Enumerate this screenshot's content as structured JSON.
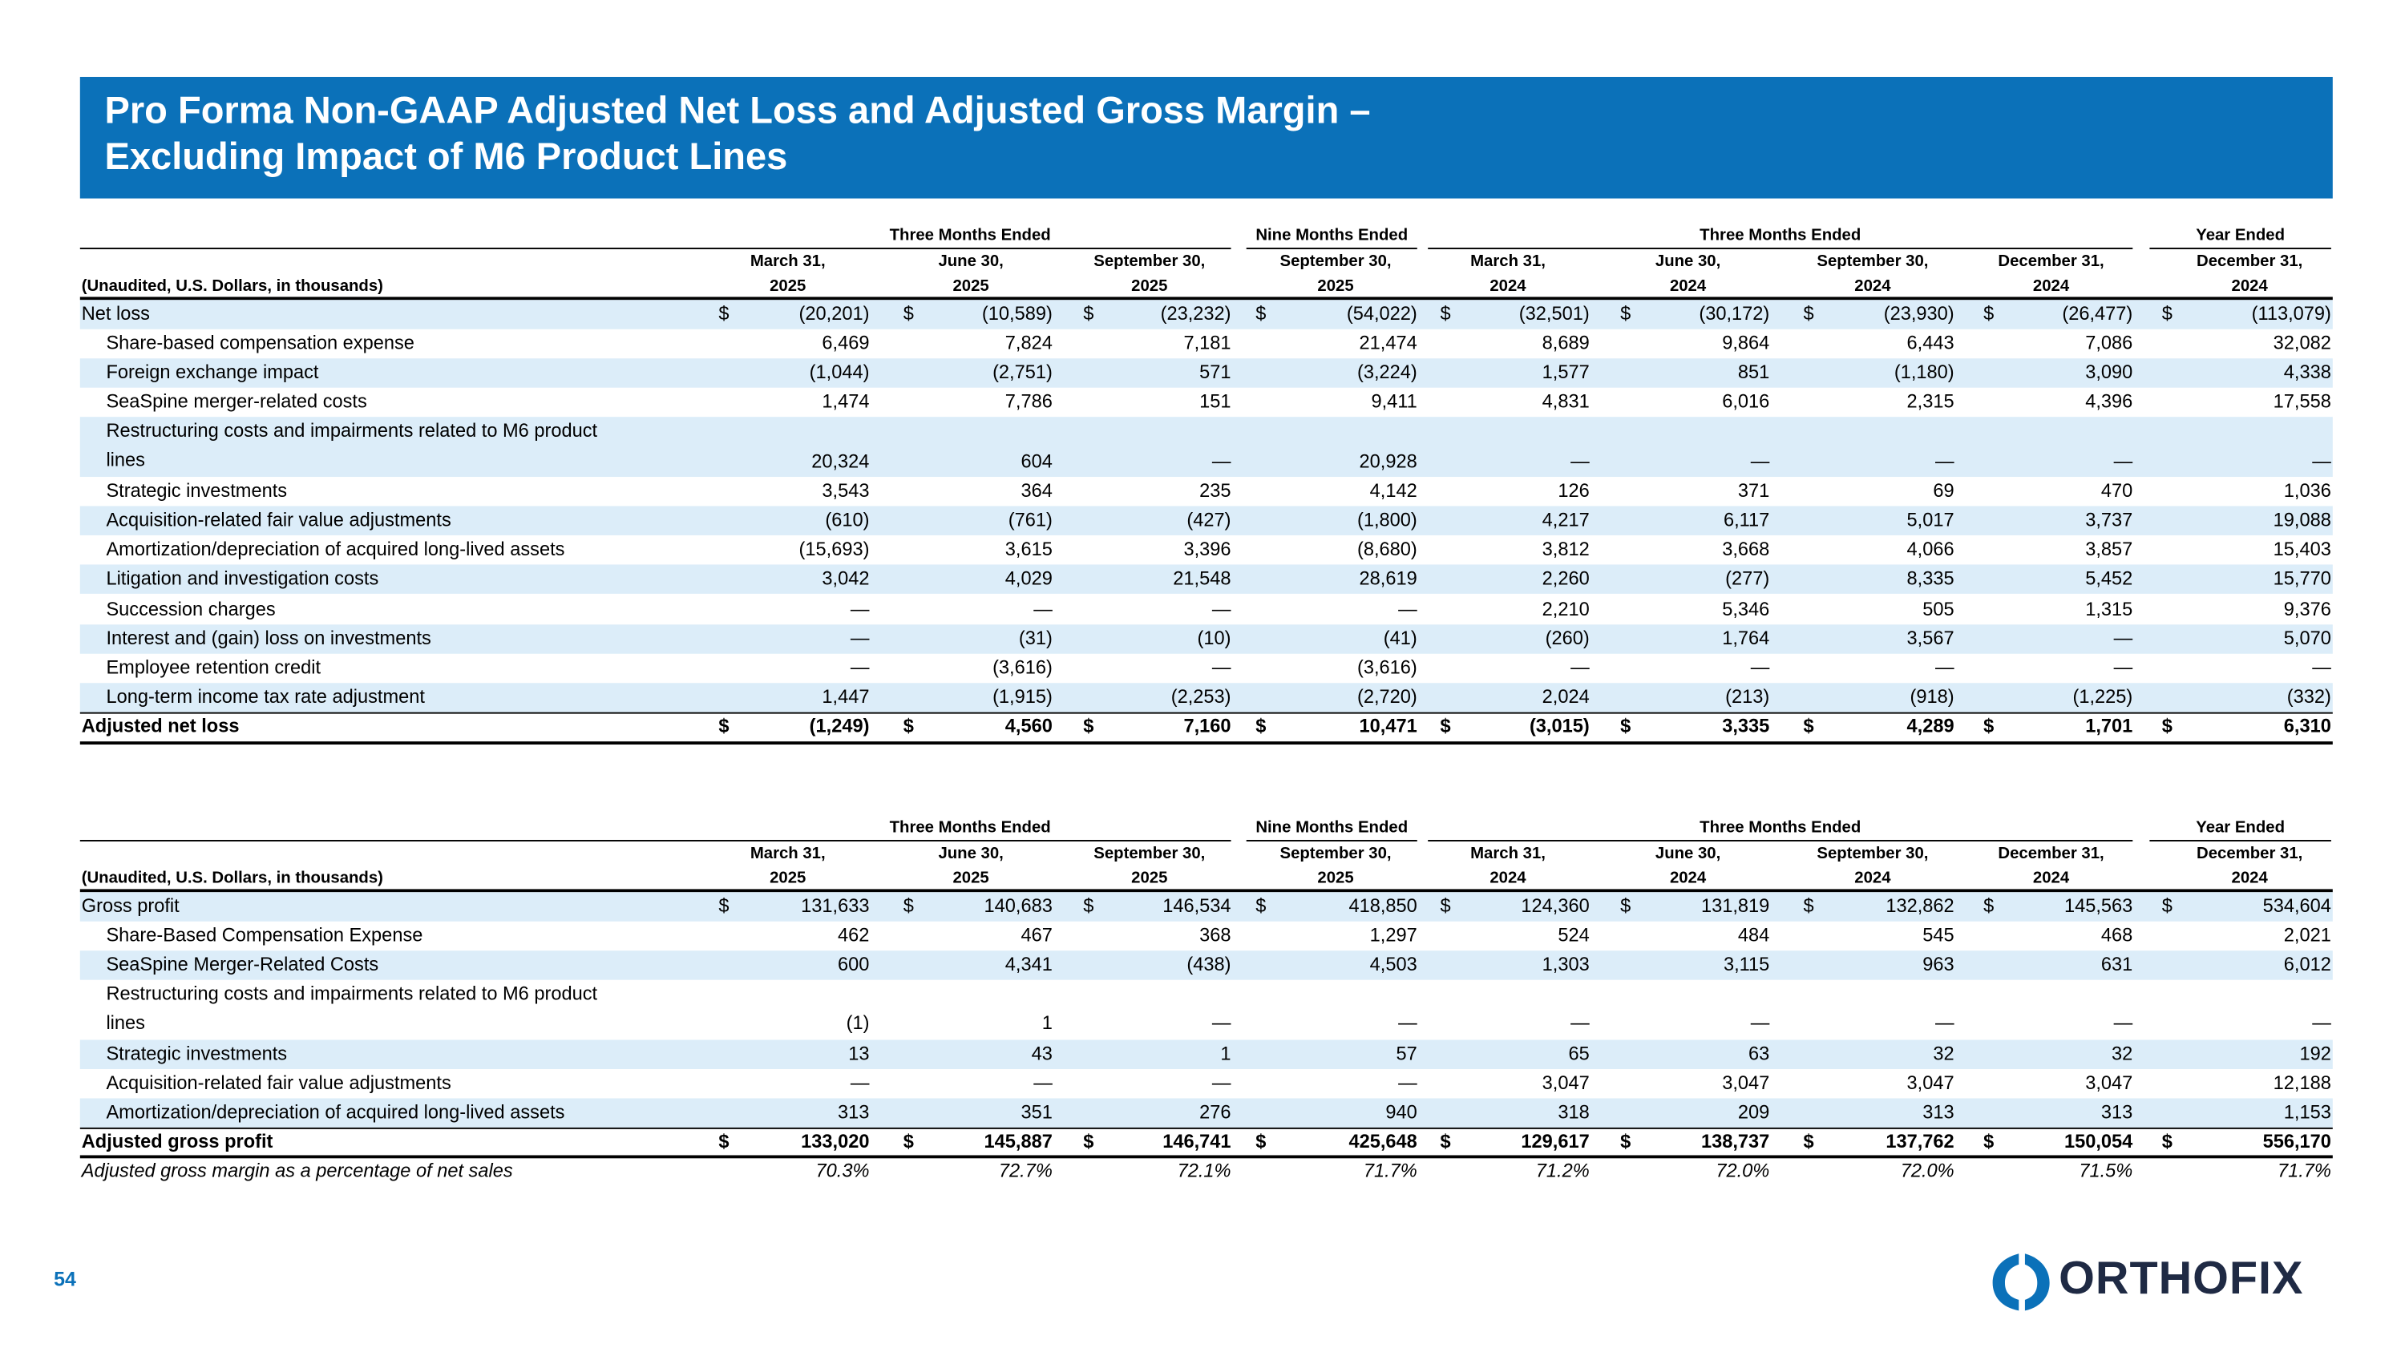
{
  "header": {
    "title_lines": [
      "Pro Forma Non-GAAP Adjusted Net Loss and Adjusted Gross Margin –",
      "Excluding Impact of M6 Product Lines"
    ]
  },
  "currency_symbol": "$",
  "tables": [
    {
      "note": "(Unaudited, U.S. Dollars, in thousands)",
      "groups": [
        "Three Months Ended",
        "Nine Months Ended",
        "Three Months Ended",
        "Year Ended"
      ],
      "columns": [
        [
          "March 31,",
          "2025"
        ],
        [
          "June 30,",
          "2025"
        ],
        [
          "September 30,",
          "2025"
        ],
        [
          "September 30,",
          "2025"
        ],
        [
          "March 31,",
          "2024"
        ],
        [
          "June 30,",
          "2024"
        ],
        [
          "September 30,",
          "2024"
        ],
        [
          "December 31,",
          "2024"
        ],
        [
          "December 31,",
          "2024"
        ]
      ],
      "rows": [
        {
          "label": "Net loss",
          "values": [
            "(20,201)",
            "(10,589)",
            "(23,232)",
            "(54,022)",
            "(32,501)",
            "(30,172)",
            "(23,930)",
            "(26,477)",
            "(113,079)"
          ]
        },
        {
          "label": "Share-based compensation expense",
          "values": [
            "6,469",
            "7,824",
            "7,181",
            "21,474",
            "8,689",
            "9,864",
            "6,443",
            "7,086",
            "32,082"
          ]
        },
        {
          "label": "Foreign exchange impact",
          "values": [
            "(1,044)",
            "(2,751)",
            "571",
            "(3,224)",
            "1,577",
            "851",
            "(1,180)",
            "3,090",
            "4,338"
          ]
        },
        {
          "label": "SeaSpine merger-related costs",
          "values": [
            "1,474",
            "7,786",
            "151",
            "9,411",
            "4,831",
            "6,016",
            "2,315",
            "4,396",
            "17,558"
          ]
        },
        {
          "label": "Restructuring costs and impairments related to M6 product lines",
          "values": [
            "20,324",
            "604",
            "—",
            "20,928",
            "—",
            "—",
            "—",
            "—",
            "—"
          ]
        },
        {
          "label": "Strategic investments",
          "values": [
            "3,543",
            "364",
            "235",
            "4,142",
            "126",
            "371",
            "69",
            "470",
            "1,036"
          ]
        },
        {
          "label": "Acquisition-related fair value adjustments",
          "values": [
            "(610)",
            "(761)",
            "(427)",
            "(1,800)",
            "4,217",
            "6,117",
            "5,017",
            "3,737",
            "19,088"
          ]
        },
        {
          "label": "Amortization/depreciation of acquired long-lived assets",
          "values": [
            "(15,693)",
            "3,615",
            "3,396",
            "(8,680)",
            "3,812",
            "3,668",
            "4,066",
            "3,857",
            "15,403"
          ]
        },
        {
          "label": "Litigation and investigation costs",
          "values": [
            "3,042",
            "4,029",
            "21,548",
            "28,619",
            "2,260",
            "(277)",
            "8,335",
            "5,452",
            "15,770"
          ]
        },
        {
          "label": "Succession charges",
          "values": [
            "—",
            "—",
            "—",
            "—",
            "2,210",
            "5,346",
            "505",
            "1,315",
            "9,376"
          ]
        },
        {
          "label": "Interest and (gain) loss on investments",
          "values": [
            "—",
            "(31)",
            "(10)",
            "(41)",
            "(260)",
            "1,764",
            "3,567",
            "—",
            "5,070"
          ]
        },
        {
          "label": "Employee retention credit",
          "values": [
            "—",
            "(3,616)",
            "—",
            "(3,616)",
            "—",
            "—",
            "—",
            "—",
            "—"
          ]
        },
        {
          "label": "Long-term income tax rate adjustment",
          "values": [
            "1,447",
            "(1,915)",
            "(2,253)",
            "(2,720)",
            "2,024",
            "(213)",
            "(918)",
            "(1,225)",
            "(332)"
          ]
        },
        {
          "label": "Adjusted net loss",
          "values": [
            "(1,249)",
            "4,560",
            "7,160",
            "10,471",
            "(3,015)",
            "3,335",
            "4,289",
            "1,701",
            "6,310"
          ]
        }
      ]
    },
    {
      "note": "(Unaudited, U.S. Dollars, in thousands)",
      "groups": [
        "Three Months Ended",
        "Nine Months Ended",
        "Three Months Ended",
        "Year Ended"
      ],
      "columns": [
        [
          "March 31,",
          "2025"
        ],
        [
          "June 30,",
          "2025"
        ],
        [
          "September 30,",
          "2025"
        ],
        [
          "September 30,",
          "2025"
        ],
        [
          "March 31,",
          "2024"
        ],
        [
          "June 30,",
          "2024"
        ],
        [
          "September 30,",
          "2024"
        ],
        [
          "December 31,",
          "2024"
        ],
        [
          "December 31,",
          "2024"
        ]
      ],
      "rows": [
        {
          "label": "Gross profit",
          "values": [
            "131,633",
            "140,683",
            "146,534",
            "418,850",
            "124,360",
            "131,819",
            "132,862",
            "145,563",
            "534,604"
          ]
        },
        {
          "label": "Share-Based Compensation Expense",
          "values": [
            "462",
            "467",
            "368",
            "1,297",
            "524",
            "484",
            "545",
            "468",
            "2,021"
          ]
        },
        {
          "label": "SeaSpine Merger-Related Costs",
          "values": [
            "600",
            "4,341",
            "(438)",
            "4,503",
            "1,303",
            "3,115",
            "963",
            "631",
            "6,012"
          ]
        },
        {
          "label": "Restructuring costs and impairments related to M6 product lines",
          "values": [
            "(1)",
            "1",
            "—",
            "—",
            "—",
            "—",
            "—",
            "—",
            "—"
          ]
        },
        {
          "label": "Strategic investments",
          "values": [
            "13",
            "43",
            "1",
            "57",
            "65",
            "63",
            "32",
            "32",
            "192"
          ]
        },
        {
          "label": "Acquisition-related fair value adjustments",
          "values": [
            "—",
            "—",
            "—",
            "—",
            "3,047",
            "3,047",
            "3,047",
            "3,047",
            "12,188"
          ]
        },
        {
          "label": "Amortization/depreciation of acquired long-lived assets",
          "values": [
            "313",
            "351",
            "276",
            "940",
            "318",
            "209",
            "313",
            "313",
            "1,153"
          ]
        },
        {
          "label": "Adjusted gross profit",
          "values": [
            "133,020",
            "145,887",
            "146,741",
            "425,648",
            "129,617",
            "138,737",
            "137,762",
            "150,054",
            "556,170"
          ]
        },
        {
          "label": "Adjusted gross margin as a percentage of net sales",
          "values": [
            "70.3%",
            "72.7%",
            "72.1%",
            "71.7%",
            "71.2%",
            "72.0%",
            "72.0%",
            "71.5%",
            "71.7%"
          ]
        }
      ]
    }
  ],
  "footer": {
    "page_number": "54",
    "logo": "ORTHOFIX"
  }
}
